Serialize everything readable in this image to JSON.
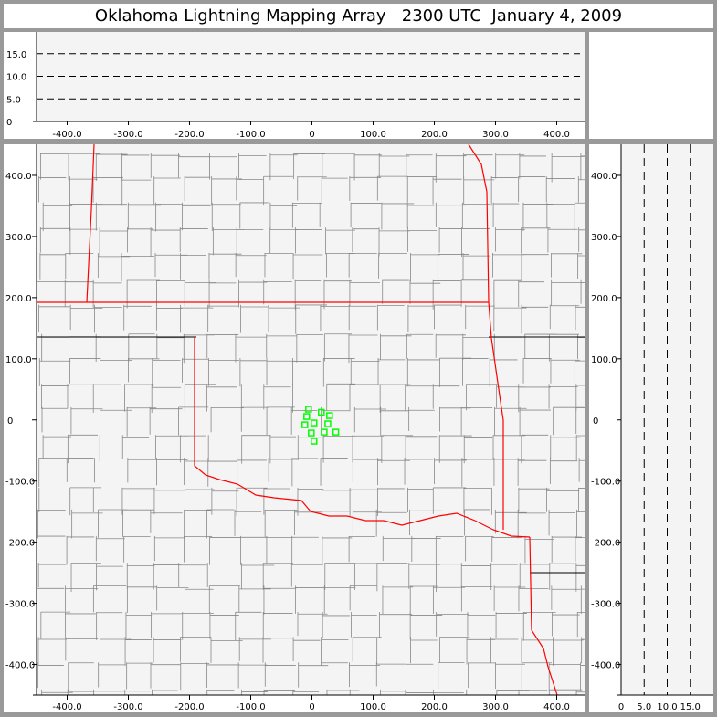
{
  "title": "Oklahoma Lightning Mapping Array   2300 UTC  January 4, 2009",
  "colors": {
    "background": "#999999",
    "panel": "#f4f4f4",
    "county_border": "#888888",
    "state_border": "#ff0000",
    "source_marker": "#00ff00"
  },
  "chart_data": [
    {
      "panel": "plan-view",
      "type": "scatter",
      "xlim": [
        -450,
        450
      ],
      "ylim": [
        -450,
        450
      ],
      "x_ticks": [
        "-400.0",
        "-300.0",
        "-200.0",
        "-100.0",
        "0",
        "100.0",
        "200.0",
        "300.0",
        "400.0"
      ],
      "y_ticks": [
        "-400.0",
        "-300.0",
        "-200.0",
        "-100.0",
        "0",
        "100.0",
        "200.0",
        "300.0",
        "400.0"
      ],
      "marker": "open-square",
      "points": [
        {
          "x": -5.5,
          "y": 17.5
        },
        {
          "x": 15.4,
          "y": 12.4
        },
        {
          "x": 28.8,
          "y": 7.0
        },
        {
          "x": -8.5,
          "y": 5.5
        },
        {
          "x": -11.5,
          "y": -8.0
        },
        {
          "x": 3.4,
          "y": -5.0
        },
        {
          "x": 26.0,
          "y": -6.4
        },
        {
          "x": -1.0,
          "y": -21.4
        },
        {
          "x": 20.0,
          "y": -20.0
        },
        {
          "x": 39.0,
          "y": -20.0
        },
        {
          "x": 3.4,
          "y": -34.8
        }
      ]
    },
    {
      "panel": "east-west-altitude",
      "type": "scatter",
      "xlim": [
        -450,
        450
      ],
      "ylim": [
        0,
        20
      ],
      "x_ticks": [
        "-400.0",
        "-300.0",
        "-200.0",
        "-100.0",
        "0",
        "100.0",
        "200.0",
        "300.0",
        "400.0"
      ],
      "y_ticks": [
        "0",
        "5.0",
        "10.0",
        "15.0"
      ],
      "dashed_gridlines": [
        5,
        10,
        15
      ],
      "points": []
    },
    {
      "panel": "north-south-altitude",
      "type": "scatter",
      "xlim": [
        0,
        20
      ],
      "ylim": [
        -450,
        450
      ],
      "x_ticks": [
        "0",
        "5.0",
        "10.0",
        "15.0"
      ],
      "y_ticks": [
        "-400.0",
        "-300.0",
        "-200.0",
        "-100.0",
        "0",
        "100.0",
        "200.0",
        "300.0",
        "400.0"
      ],
      "dashed_gridlines": [
        5,
        10,
        15
      ],
      "points": []
    }
  ]
}
